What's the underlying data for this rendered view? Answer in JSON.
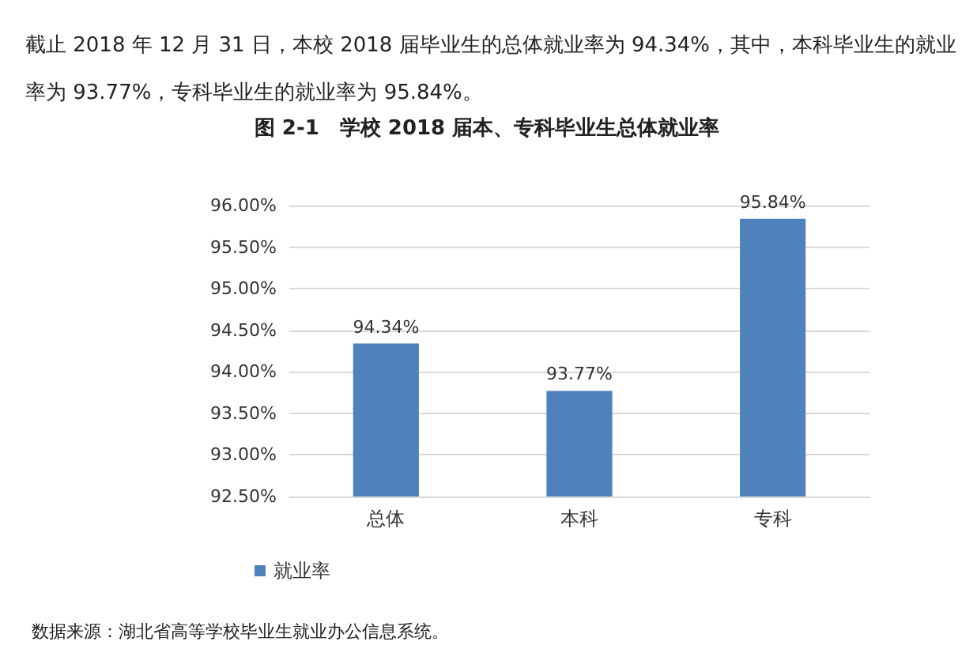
{
  "chart_data": {
    "type": "bar",
    "subtitle": "截止 2018 年 12 月 31 日，本校 2018 届毕业生的总体就业率为 94.34%，其中，本科毕业生的就业率为 93.77%，专科毕业生的就业率为 95.84%。",
    "title": "图 2-1　学校 2018 届本、专科毕业生总体就业率",
    "categories": [
      "总体",
      "本科",
      "专科"
    ],
    "series": [
      {
        "name": "就业率",
        "color": "#4f81bd",
        "values": [
          94.34,
          93.77,
          95.84
        ],
        "value_labels": [
          "94.34%",
          "93.77%",
          "95.84%"
        ]
      }
    ],
    "ylim": [
      92.5,
      96
    ],
    "yticks": [
      {
        "value": 92.5,
        "label": "92.50%"
      },
      {
        "value": 93,
        "label": "93.00%"
      },
      {
        "value": 93.5,
        "label": "93.50%"
      },
      {
        "value": 94,
        "label": "94.00%"
      },
      {
        "value": 94.5,
        "label": "94.50%"
      },
      {
        "value": 95,
        "label": "95.00%"
      },
      {
        "value": 95.5,
        "label": "95.50%"
      },
      {
        "value": 96,
        "label": "96.00%"
      }
    ],
    "grid": "y",
    "legend": "bottom left",
    "annotations": [
      "数据来源：湖北省高等学校毕业生就业办公信息系统。"
    ]
  }
}
